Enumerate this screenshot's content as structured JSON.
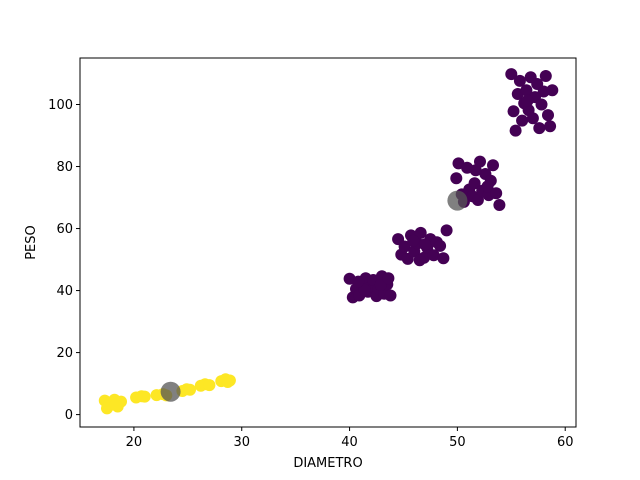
{
  "chart_data": {
    "type": "scatter",
    "title": "",
    "xlabel": "DIAMETRO",
    "ylabel": "PESO",
    "xlim": [
      15,
      61
    ],
    "ylim": [
      -4,
      115
    ],
    "xticks": [
      20,
      30,
      40,
      50,
      60
    ],
    "yticks": [
      0,
      20,
      40,
      60,
      80,
      100
    ],
    "grid": false,
    "legend": "none",
    "colors": {
      "cluster_a": "#fde725",
      "cluster_b": "#440154",
      "centroid": "#555555"
    },
    "series": [
      {
        "color_key": "cluster_a",
        "points": [
          [
            17.3,
            4.5
          ],
          [
            17.6,
            2.5
          ],
          [
            17.8,
            3.8
          ],
          [
            18.2,
            4.8
          ],
          [
            18.5,
            2.6
          ],
          [
            17.5,
            2.0
          ],
          [
            18.8,
            4.2
          ],
          [
            18.3,
            3.2
          ],
          [
            20.2,
            5.5
          ],
          [
            20.7,
            5.9
          ],
          [
            21.0,
            5.8
          ],
          [
            22.1,
            6.3
          ],
          [
            22.7,
            6.6
          ],
          [
            23.0,
            6.2
          ],
          [
            24.5,
            7.6
          ],
          [
            24.9,
            8.2
          ],
          [
            25.2,
            8.0
          ],
          [
            26.2,
            9.3
          ],
          [
            26.6,
            9.8
          ],
          [
            27.0,
            9.5
          ],
          [
            28.1,
            10.8
          ],
          [
            28.5,
            11.4
          ],
          [
            28.9,
            11.0
          ],
          [
            28.7,
            10.5
          ]
        ]
      },
      {
        "color_key": "cluster_b",
        "points": [
          [
            40.0,
            43.8
          ],
          [
            40.3,
            37.8
          ],
          [
            40.6,
            40.5
          ],
          [
            40.9,
            38.4
          ],
          [
            41.2,
            42.2
          ],
          [
            41.5,
            44.0
          ],
          [
            41.7,
            39.6
          ],
          [
            42.0,
            41.2
          ],
          [
            42.2,
            43.4
          ],
          [
            42.5,
            38.2
          ],
          [
            42.7,
            40.6
          ],
          [
            43.0,
            44.6
          ],
          [
            43.2,
            39.0
          ],
          [
            43.5,
            42.0
          ],
          [
            43.8,
            38.4
          ],
          [
            41.4,
            40.2
          ],
          [
            42.9,
            41.8
          ],
          [
            40.8,
            42.9
          ],
          [
            43.6,
            44.0
          ],
          [
            44.5,
            56.6
          ],
          [
            44.8,
            51.6
          ],
          [
            45.1,
            54.2
          ],
          [
            45.4,
            50.2
          ],
          [
            45.7,
            57.8
          ],
          [
            46.0,
            52.6
          ],
          [
            46.3,
            55.2
          ],
          [
            46.6,
            58.6
          ],
          [
            46.9,
            50.6
          ],
          [
            47.2,
            53.8
          ],
          [
            47.5,
            56.6
          ],
          [
            47.8,
            51.4
          ],
          [
            48.1,
            55.6
          ],
          [
            48.4,
            54.4
          ],
          [
            48.7,
            50.4
          ],
          [
            49.0,
            59.4
          ],
          [
            46.5,
            49.8
          ],
          [
            47.0,
            54.9
          ],
          [
            45.9,
            56.0
          ],
          [
            49.9,
            76.2
          ],
          [
            50.1,
            81.0
          ],
          [
            50.4,
            71.0
          ],
          [
            50.6,
            68.6
          ],
          [
            50.9,
            79.6
          ],
          [
            51.1,
            72.6
          ],
          [
            51.4,
            70.4
          ],
          [
            51.6,
            74.6
          ],
          [
            51.9,
            69.2
          ],
          [
            52.1,
            81.6
          ],
          [
            52.3,
            72.2
          ],
          [
            52.6,
            77.6
          ],
          [
            52.9,
            70.8
          ],
          [
            53.1,
            75.4
          ],
          [
            53.3,
            80.4
          ],
          [
            53.6,
            71.4
          ],
          [
            53.9,
            67.6
          ],
          [
            51.7,
            78.8
          ],
          [
            52.8,
            73.6
          ],
          [
            55.0,
            109.8
          ],
          [
            55.2,
            97.8
          ],
          [
            55.4,
            91.6
          ],
          [
            55.6,
            103.4
          ],
          [
            55.8,
            107.6
          ],
          [
            56.0,
            94.8
          ],
          [
            56.2,
            100.4
          ],
          [
            56.4,
            104.6
          ],
          [
            56.6,
            98.2
          ],
          [
            56.8,
            108.8
          ],
          [
            57.0,
            95.6
          ],
          [
            57.2,
            102.4
          ],
          [
            57.4,
            106.6
          ],
          [
            57.6,
            92.4
          ],
          [
            57.8,
            100.0
          ],
          [
            58.0,
            104.2
          ],
          [
            58.2,
            109.2
          ],
          [
            58.4,
            96.6
          ],
          [
            58.6,
            93.0
          ],
          [
            58.8,
            104.6
          ],
          [
            56.5,
            101.2
          ]
        ]
      },
      {
        "color_key": "centroid",
        "points": [
          [
            23.4,
            7.4
          ],
          [
            50.0,
            69.0
          ]
        ]
      }
    ]
  }
}
